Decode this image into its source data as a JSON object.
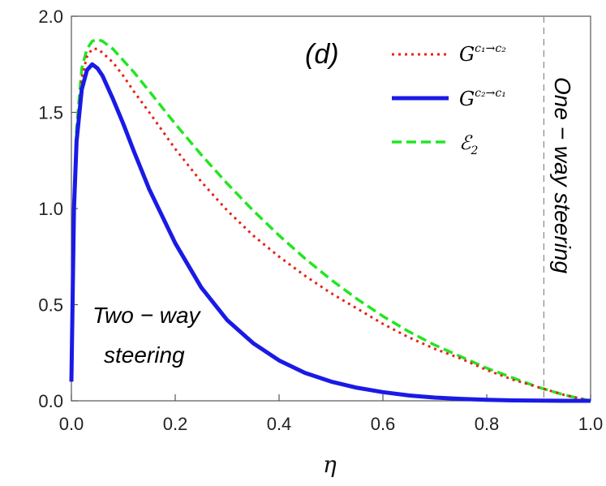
{
  "chart_data": {
    "type": "line",
    "panel_label": "(d)",
    "xlabel": "η",
    "ylabel": "",
    "xlim": [
      0,
      1
    ],
    "ylim": [
      0,
      2
    ],
    "x_ticks": [
      "0.0",
      "0.2",
      "0.4",
      "0.6",
      "0.8",
      "1.0"
    ],
    "y_ticks": [
      "0.0",
      "0.5",
      "1.0",
      "1.5",
      "2.0"
    ],
    "grid": false,
    "legend_position": "top-right",
    "threshold_x": 0.91,
    "annotations": {
      "left_line1": "Two − way",
      "left_line2": "steering",
      "right": "One − way steering"
    },
    "series": [
      {
        "name": "G^{c1→c2}",
        "legend_main": "G",
        "legend_sup": "c₁→c₂",
        "style": "dotted",
        "color": "#e8231c",
        "x": [
          0,
          0.005,
          0.01,
          0.02,
          0.03,
          0.04,
          0.05,
          0.06,
          0.08,
          0.1,
          0.12,
          0.15,
          0.2,
          0.25,
          0.3,
          0.35,
          0.4,
          0.45,
          0.5,
          0.55,
          0.6,
          0.65,
          0.7,
          0.75,
          0.8,
          0.85,
          0.9,
          0.95,
          1.0
        ],
        "values": [
          0.1,
          1.0,
          1.38,
          1.68,
          1.79,
          1.83,
          1.83,
          1.81,
          1.76,
          1.69,
          1.61,
          1.5,
          1.31,
          1.14,
          0.99,
          0.86,
          0.75,
          0.65,
          0.56,
          0.48,
          0.4,
          0.33,
          0.27,
          0.22,
          0.16,
          0.11,
          0.07,
          0.03,
          0.0
        ]
      },
      {
        "name": "G^{c2→c1}",
        "legend_main": "G",
        "legend_sup": "c₂→c₁",
        "style": "solid",
        "color": "#1a1ae6",
        "x": [
          0,
          0.005,
          0.01,
          0.02,
          0.03,
          0.04,
          0.05,
          0.06,
          0.08,
          0.1,
          0.12,
          0.15,
          0.2,
          0.25,
          0.3,
          0.35,
          0.4,
          0.45,
          0.5,
          0.55,
          0.6,
          0.65,
          0.7,
          0.75,
          0.8,
          0.85,
          0.9,
          0.95,
          1.0
        ],
        "values": [
          0.1,
          1.0,
          1.35,
          1.62,
          1.72,
          1.75,
          1.73,
          1.69,
          1.57,
          1.44,
          1.3,
          1.1,
          0.82,
          0.59,
          0.42,
          0.3,
          0.21,
          0.145,
          0.1,
          0.068,
          0.045,
          0.028,
          0.017,
          0.01,
          0.005,
          0.002,
          0.001,
          0.0,
          0.0
        ]
      },
      {
        "name": "E_2",
        "legend_main": "ℰ",
        "legend_sub": "2",
        "style": "dashed",
        "color": "#22e622",
        "x": [
          0,
          0.005,
          0.01,
          0.02,
          0.03,
          0.04,
          0.05,
          0.06,
          0.08,
          0.1,
          0.12,
          0.15,
          0.2,
          0.25,
          0.3,
          0.35,
          0.4,
          0.45,
          0.5,
          0.55,
          0.6,
          0.65,
          0.7,
          0.75,
          0.8,
          0.85,
          0.9,
          0.95,
          1.0
        ],
        "values": [
          0.1,
          1.05,
          1.42,
          1.73,
          1.83,
          1.87,
          1.88,
          1.87,
          1.83,
          1.77,
          1.71,
          1.61,
          1.44,
          1.28,
          1.13,
          0.99,
          0.86,
          0.74,
          0.63,
          0.53,
          0.44,
          0.36,
          0.29,
          0.23,
          0.17,
          0.12,
          0.07,
          0.03,
          0.0
        ]
      }
    ]
  }
}
